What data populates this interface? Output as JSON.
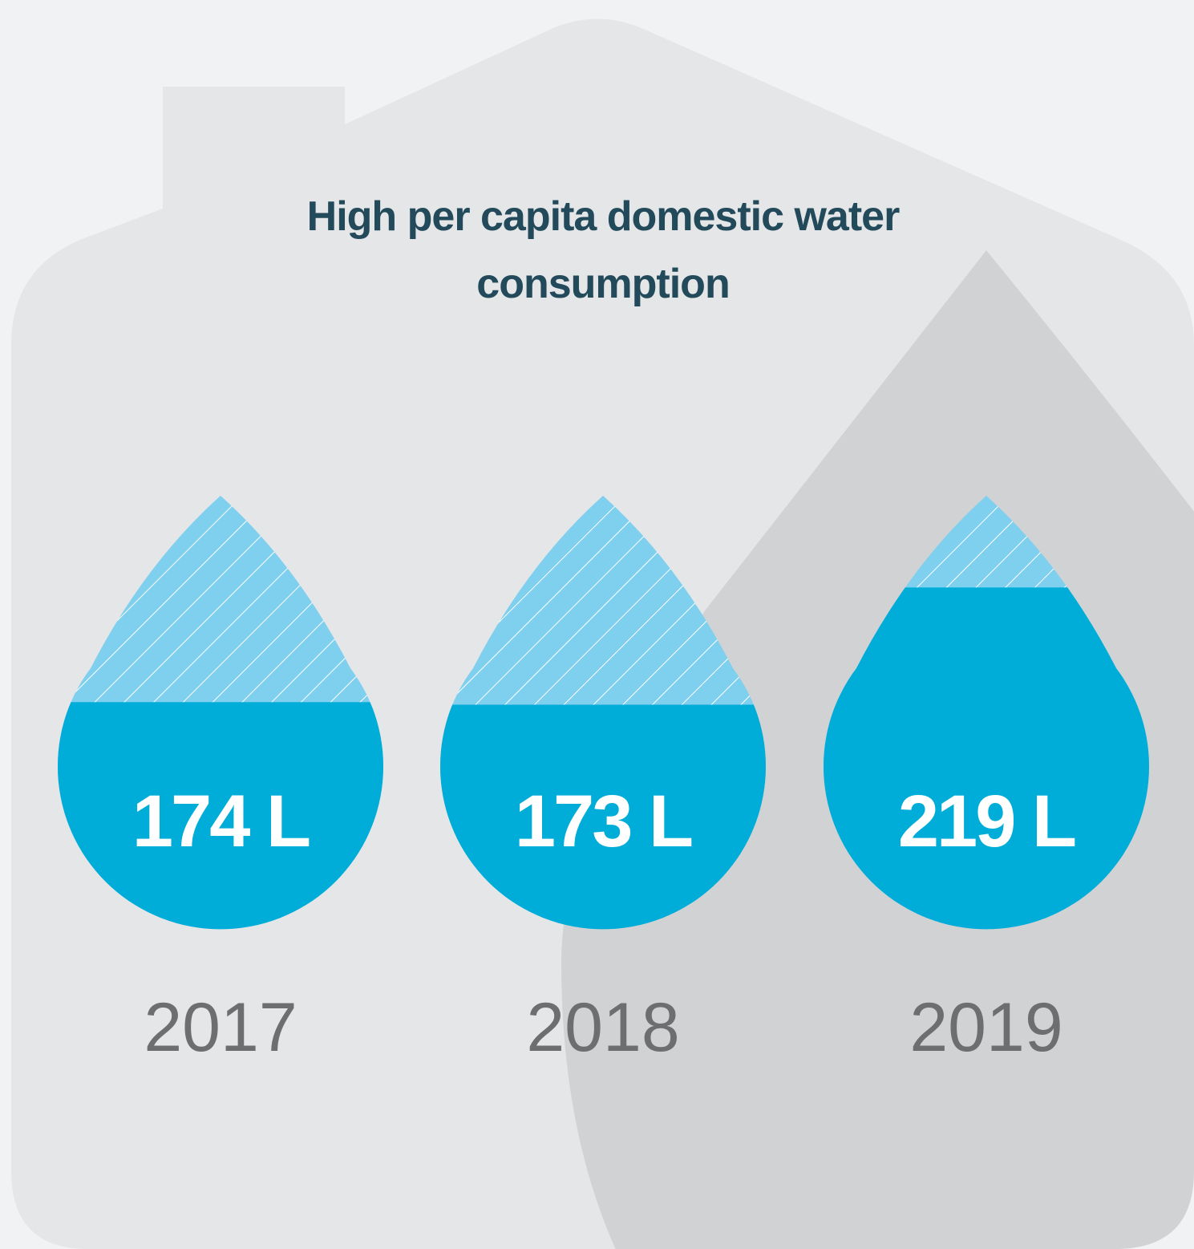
{
  "chart_data": {
    "type": "drop",
    "title": "High per capita domestic water consumption",
    "categories": [
      "2017",
      "2018",
      "2019"
    ],
    "values": [
      174,
      173,
      219
    ],
    "value_labels": [
      "174 L",
      "173 L",
      "219 L"
    ],
    "ylim": [
      85,
      255
    ],
    "color": "#00acd8"
  }
}
